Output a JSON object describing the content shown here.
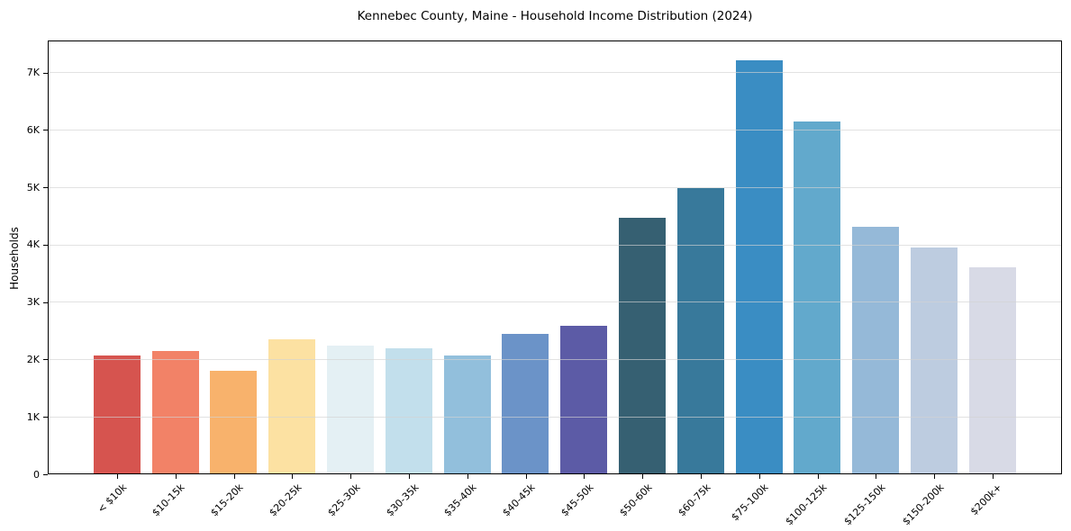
{
  "figure": {
    "background_color": "#ffffff",
    "frame_color": "#000000",
    "grid_color_rgba": "rgba(210,210,210,0.65)"
  },
  "chart_data": {
    "type": "bar",
    "title": "Kennebec County, Maine - Household Income Distribution (2024)",
    "xlabel": "",
    "ylabel": "Households",
    "grid": "horizontal",
    "legend": "none",
    "ylim": [
      0,
      7560
    ],
    "yticks": [
      {
        "value": 0,
        "label": "0"
      },
      {
        "value": 1000,
        "label": "1K"
      },
      {
        "value": 2000,
        "label": "2K"
      },
      {
        "value": 3000,
        "label": "3K"
      },
      {
        "value": 4000,
        "label": "4K"
      },
      {
        "value": 5000,
        "label": "5K"
      },
      {
        "value": 6000,
        "label": "6K"
      },
      {
        "value": 7000,
        "label": "7K"
      }
    ],
    "categories": [
      "< $10k",
      "$10-15k",
      "$15-20k",
      "$20-25k",
      "$25-30k",
      "$30-35k",
      "$35-40k",
      "$40-45k",
      "$45-50k",
      "$50-60k",
      "$60-75k",
      "$75-100k",
      "$100-125k",
      "$125-150k",
      "$150-200k",
      "$200k+"
    ],
    "values": [
      2060,
      2130,
      1785,
      2345,
      2230,
      2185,
      2050,
      2435,
      2570,
      4460,
      4965,
      7200,
      6135,
      4290,
      3935,
      3595
    ],
    "bar_colors": [
      "#d6544f",
      "#f28267",
      "#f8b26c",
      "#fce1a2",
      "#e4f0f4",
      "#c2dfec",
      "#92bfdc",
      "#6b93c8",
      "#5c5ba6",
      "#366072",
      "#38799b",
      "#3a8dc3",
      "#62a9cc",
      "#95b9d8",
      "#bdcce0",
      "#d8dae6"
    ]
  }
}
